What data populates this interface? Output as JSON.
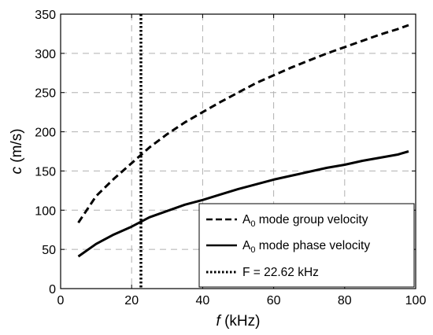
{
  "chart_data": {
    "type": "line",
    "xlabel": {
      "italic": "f",
      "rest": " (kHz)"
    },
    "ylabel": {
      "italic": "c",
      "rest": " (m/s)"
    },
    "xlim": [
      0,
      100
    ],
    "ylim": [
      0,
      350
    ],
    "xticks": [
      0,
      20,
      40,
      60,
      80,
      100
    ],
    "yticks": [
      0,
      50,
      100,
      150,
      200,
      250,
      300,
      350
    ],
    "grid": true,
    "legend_position": "bottom-right",
    "series": [
      {
        "name": {
          "pre": "A",
          "sub": "0",
          "post": " mode group velocity"
        },
        "style": "dashed",
        "x": [
          5,
          10,
          15,
          20,
          25,
          30,
          35,
          40,
          45,
          50,
          55,
          60,
          65,
          70,
          75,
          80,
          85,
          90,
          95,
          98
        ],
        "y": [
          84,
          118,
          140,
          160,
          180,
          197,
          212,
          225,
          238,
          250,
          262,
          272,
          282,
          291,
          300,
          308,
          316,
          324,
          331,
          336
        ]
      },
      {
        "name": {
          "pre": "A",
          "sub": "0",
          "post": " mode phase velocity"
        },
        "style": "solid",
        "x": [
          5,
          10,
          15,
          20,
          25,
          30,
          35,
          40,
          45,
          50,
          55,
          60,
          65,
          70,
          75,
          80,
          85,
          90,
          95,
          98
        ],
        "y": [
          41,
          57,
          69,
          79,
          91,
          99,
          107,
          113,
          120,
          127,
          133,
          139,
          144,
          149,
          154,
          158,
          163,
          167,
          171,
          175
        ]
      }
    ],
    "vline": {
      "name": "F = 22.62 kHz",
      "x": 22.62,
      "style": "dotted"
    }
  }
}
